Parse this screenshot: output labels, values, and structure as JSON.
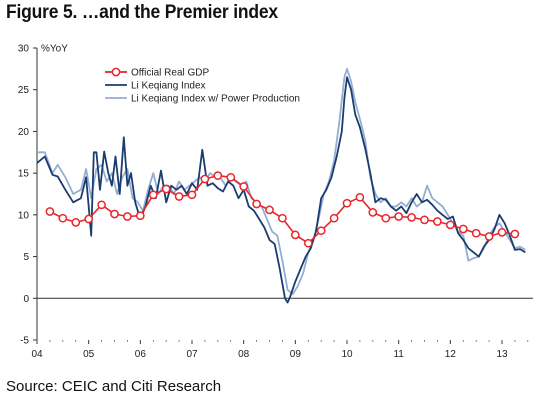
{
  "figure": {
    "title": "Figure 5. …and the Premier index",
    "source": "Source: CEIC and Citi Research"
  },
  "chart_data": {
    "type": "line",
    "ylabel": "%YoY",
    "ylim": [
      -5,
      30
    ],
    "yticks": [
      -5,
      0,
      5,
      10,
      15,
      20,
      25,
      30
    ],
    "xlim": [
      2004.0,
      2013.6
    ],
    "xticks": [
      {
        "label": "04",
        "x": 2004.0
      },
      {
        "label": "05",
        "x": 2005.0
      },
      {
        "label": "06",
        "x": 2006.0
      },
      {
        "label": "07",
        "x": 2007.0
      },
      {
        "label": "08",
        "x": 2008.0
      },
      {
        "label": "09",
        "x": 2009.0
      },
      {
        "label": "10",
        "x": 2010.0
      },
      {
        "label": "11",
        "x": 2011.0
      },
      {
        "label": "12",
        "x": 2012.0
      },
      {
        "label": "13",
        "x": 2013.0
      }
    ],
    "legend_position": "top-center",
    "grid": false,
    "series": [
      {
        "name": "Official Real GDP",
        "color": "#e8262c",
        "marker": "circle",
        "x": [
          2004.25,
          2004.5,
          2004.75,
          2005.0,
          2005.25,
          2005.5,
          2005.75,
          2006.0,
          2006.25,
          2006.5,
          2006.75,
          2007.0,
          2007.25,
          2007.5,
          2007.75,
          2008.0,
          2008.25,
          2008.5,
          2008.75,
          2009.0,
          2009.25,
          2009.5,
          2009.75,
          2010.0,
          2010.25,
          2010.5,
          2010.75,
          2011.0,
          2011.25,
          2011.5,
          2011.75,
          2012.0,
          2012.25,
          2012.5,
          2012.75,
          2013.0,
          2013.25
        ],
        "values": [
          10.4,
          9.6,
          9.1,
          9.5,
          11.2,
          10.1,
          9.8,
          9.9,
          12.4,
          13.1,
          12.2,
          12.4,
          14.3,
          14.7,
          14.5,
          13.4,
          11.3,
          10.6,
          9.6,
          7.6,
          6.6,
          8.1,
          9.6,
          11.4,
          12.1,
          10.3,
          9.6,
          9.8,
          9.7,
          9.4,
          9.2,
          8.8,
          8.3,
          7.8,
          7.4,
          7.9,
          7.7
        ]
      },
      {
        "name": "Li Keqiang Index",
        "color": "#1b3c6e",
        "marker": "none",
        "x": [
          2004.0,
          2004.15,
          2004.3,
          2004.4,
          2004.55,
          2004.7,
          2004.85,
          2004.95,
          2005.0,
          2005.05,
          2005.1,
          2005.15,
          2005.22,
          2005.3,
          2005.38,
          2005.45,
          2005.52,
          2005.6,
          2005.68,
          2005.75,
          2005.82,
          2005.9,
          2006.0,
          2006.1,
          2006.2,
          2006.3,
          2006.4,
          2006.5,
          2006.6,
          2006.7,
          2006.8,
          2006.9,
          2007.0,
          2007.1,
          2007.2,
          2007.3,
          2007.4,
          2007.5,
          2007.6,
          2007.7,
          2007.8,
          2007.9,
          2008.0,
          2008.1,
          2008.2,
          2008.3,
          2008.4,
          2008.5,
          2008.6,
          2008.7,
          2008.8,
          2008.85,
          2008.9,
          2009.0,
          2009.1,
          2009.2,
          2009.3,
          2009.4,
          2009.5,
          2009.6,
          2009.7,
          2009.8,
          2009.9,
          2009.95,
          2010.0,
          2010.08,
          2010.16,
          2010.25,
          2010.35,
          2010.45,
          2010.55,
          2010.65,
          2010.75,
          2010.85,
          2010.95,
          2011.05,
          2011.15,
          2011.25,
          2011.35,
          2011.45,
          2011.55,
          2011.65,
          2011.75,
          2011.85,
          2011.95,
          2012.05,
          2012.15,
          2012.25,
          2012.35,
          2012.45,
          2012.55,
          2012.65,
          2012.75,
          2012.85,
          2012.95,
          2013.05,
          2013.15,
          2013.25,
          2013.35,
          2013.45
        ],
        "values": [
          16.2,
          17.0,
          14.8,
          14.6,
          13.0,
          11.5,
          12.0,
          14.5,
          11.0,
          7.5,
          17.5,
          17.5,
          13.0,
          17.6,
          15.0,
          13.5,
          17.0,
          12.5,
          19.3,
          13.5,
          15.0,
          11.5,
          9.5,
          11.0,
          13.5,
          12.0,
          15.3,
          11.5,
          13.5,
          13.0,
          13.5,
          12.5,
          13.8,
          13.0,
          17.8,
          13.5,
          13.8,
          13.2,
          12.8,
          14.0,
          13.5,
          12.0,
          13.0,
          11.0,
          10.5,
          9.5,
          8.5,
          7.0,
          6.5,
          3.5,
          0.0,
          -0.5,
          0.2,
          2.0,
          3.5,
          5.0,
          6.0,
          8.0,
          12.0,
          13.0,
          14.5,
          17.0,
          20.0,
          24.0,
          26.5,
          25.0,
          22.0,
          20.5,
          18.0,
          15.0,
          11.5,
          12.0,
          11.8,
          11.0,
          10.5,
          11.0,
          10.2,
          11.5,
          12.5,
          11.5,
          11.8,
          11.2,
          10.5,
          10.0,
          9.5,
          9.8,
          7.8,
          7.0,
          6.0,
          5.5,
          5.0,
          6.2,
          7.0,
          8.2,
          10.0,
          9.0,
          7.5,
          5.8,
          5.9,
          5.5
        ]
      },
      {
        "name": "Li Keqiang Index w/ Power Production",
        "color": "#94aed0",
        "marker": "none",
        "x": [
          2004.0,
          2004.15,
          2004.3,
          2004.4,
          2004.55,
          2004.7,
          2004.85,
          2004.95,
          2005.05,
          2005.15,
          2005.25,
          2005.35,
          2005.45,
          2005.55,
          2005.65,
          2005.75,
          2005.85,
          2005.95,
          2006.05,
          2006.15,
          2006.25,
          2006.35,
          2006.45,
          2006.55,
          2006.65,
          2006.75,
          2006.85,
          2006.95,
          2007.05,
          2007.15,
          2007.25,
          2007.35,
          2007.45,
          2007.55,
          2007.65,
          2007.75,
          2007.85,
          2007.95,
          2008.05,
          2008.15,
          2008.25,
          2008.35,
          2008.45,
          2008.55,
          2008.65,
          2008.75,
          2008.85,
          2008.95,
          2009.05,
          2009.15,
          2009.25,
          2009.35,
          2009.45,
          2009.55,
          2009.65,
          2009.75,
          2009.85,
          2009.95,
          2010.0,
          2010.08,
          2010.16,
          2010.25,
          2010.35,
          2010.45,
          2010.55,
          2010.65,
          2010.75,
          2010.85,
          2010.95,
          2011.05,
          2011.15,
          2011.25,
          2011.35,
          2011.45,
          2011.55,
          2011.65,
          2011.75,
          2011.85,
          2011.95,
          2012.05,
          2012.15,
          2012.25,
          2012.35,
          2012.45,
          2012.55,
          2012.65,
          2012.75,
          2012.85,
          2012.95,
          2013.05,
          2013.15,
          2013.25,
          2013.35,
          2013.45
        ],
        "values": [
          17.5,
          17.5,
          15.0,
          16.0,
          14.5,
          12.5,
          13.0,
          15.5,
          12.0,
          15.5,
          16.0,
          14.0,
          15.0,
          12.5,
          14.5,
          15.5,
          12.0,
          11.5,
          10.5,
          13.0,
          15.0,
          12.5,
          13.5,
          13.5,
          12.5,
          14.0,
          13.0,
          13.5,
          14.0,
          14.5,
          14.0,
          15.0,
          14.5,
          14.5,
          13.5,
          14.5,
          14.0,
          13.5,
          14.0,
          12.0,
          11.5,
          11.0,
          9.5,
          8.0,
          7.5,
          4.5,
          1.0,
          0.5,
          1.5,
          3.0,
          5.5,
          7.0,
          9.5,
          12.5,
          14.0,
          16.5,
          21.0,
          26.5,
          27.5,
          26.0,
          23.5,
          21.5,
          19.0,
          14.5,
          12.5,
          11.5,
          12.0,
          11.0,
          11.0,
          11.5,
          11.0,
          12.0,
          11.0,
          11.5,
          13.5,
          12.0,
          11.5,
          11.0,
          10.0,
          9.0,
          8.0,
          7.5,
          4.5,
          4.8,
          5.0,
          6.0,
          7.5,
          8.5,
          9.0,
          8.0,
          7.0,
          6.0,
          6.2,
          5.8
        ]
      }
    ]
  }
}
